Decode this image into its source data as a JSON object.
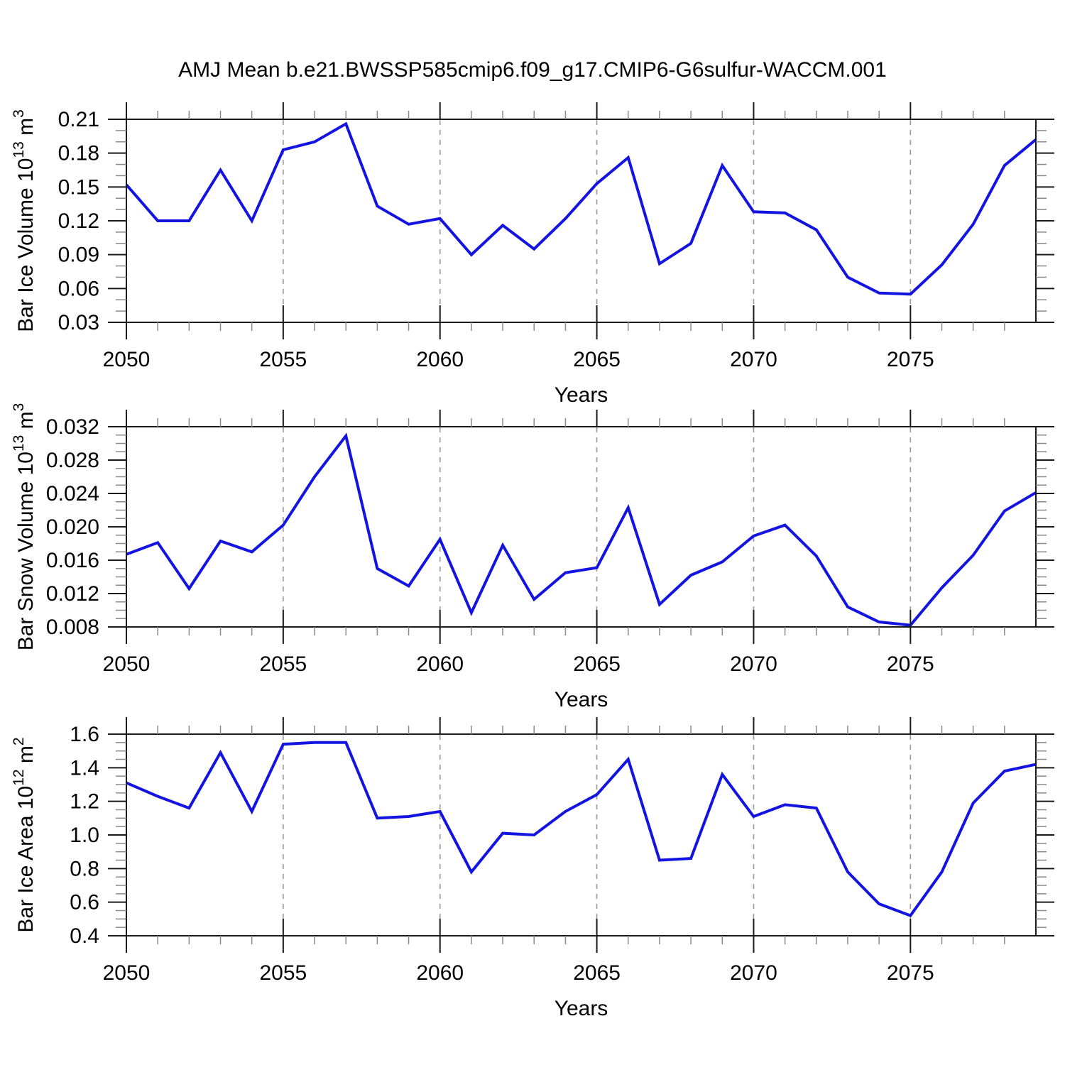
{
  "title": "AMJ Mean b.e21.BWSSP585cmip6.f09_g17.CMIP6-G6sulfur-WACCM.001",
  "colors": {
    "line": "#1414e0",
    "frame": "#1a1a1a",
    "major_tick": "#1a1a1a",
    "minor_tick": "#8a8a8a",
    "gridline": "#999999",
    "text": "#000000",
    "background": "#ffffff"
  },
  "x_axis": {
    "label": "Years",
    "range": [
      2050,
      2079
    ],
    "major_ticks": [
      2050,
      2055,
      2060,
      2065,
      2070,
      2075
    ],
    "minor_step": 1,
    "gridlines": [
      2055,
      2060,
      2065,
      2070,
      2075
    ]
  },
  "years": [
    2050,
    2051,
    2052,
    2053,
    2054,
    2055,
    2056,
    2057,
    2058,
    2059,
    2060,
    2061,
    2062,
    2063,
    2064,
    2065,
    2066,
    2067,
    2068,
    2069,
    2070,
    2071,
    2072,
    2073,
    2074,
    2075,
    2076,
    2077,
    2078,
    2079
  ],
  "chart_data": [
    {
      "type": "line",
      "name": "ice-volume",
      "xlabel": "Years",
      "ylabel": "Bar Ice Volume 10^13 m^3",
      "ylabel_parts": [
        {
          "t": "Bar Ice Volume 10",
          "sup": false
        },
        {
          "t": "13",
          "sup": true
        },
        {
          "t": " m",
          "sup": false
        },
        {
          "t": "3",
          "sup": true
        }
      ],
      "ylim": [
        0.03,
        0.21
      ],
      "yticks": [
        0.03,
        0.06,
        0.09,
        0.12,
        0.15,
        0.18,
        0.21
      ],
      "ytick_labels": [
        "0.03",
        "0.06",
        "0.09",
        "0.12",
        "0.15",
        "0.18",
        "0.21"
      ],
      "y_minor_step": 0.01,
      "grid": "vertical-dashed",
      "legend": "none",
      "values": [
        0.152,
        0.12,
        0.12,
        0.165,
        0.12,
        0.183,
        0.19,
        0.206,
        0.133,
        0.117,
        0.122,
        0.09,
        0.116,
        0.095,
        0.122,
        0.153,
        0.176,
        0.082,
        0.1,
        0.169,
        0.128,
        0.127,
        0.112,
        0.07,
        0.056,
        0.055,
        0.081,
        0.117,
        0.169,
        0.192
      ]
    },
    {
      "type": "line",
      "name": "snow-volume",
      "xlabel": "Years",
      "ylabel": "Bar Snow Volume 10^13 m^3",
      "ylabel_parts": [
        {
          "t": "Bar Snow Volume 10",
          "sup": false
        },
        {
          "t": "13",
          "sup": true
        },
        {
          "t": " m",
          "sup": false
        },
        {
          "t": "3",
          "sup": true
        }
      ],
      "ylim": [
        0.008,
        0.032
      ],
      "yticks": [
        0.008,
        0.012,
        0.016,
        0.02,
        0.024,
        0.028,
        0.032
      ],
      "ytick_labels": [
        "0.008",
        "0.012",
        "0.016",
        "0.020",
        "0.024",
        "0.028",
        "0.032"
      ],
      "y_minor_step": 0.001,
      "grid": "vertical-dashed",
      "legend": "none",
      "values": [
        0.0167,
        0.0181,
        0.0126,
        0.0183,
        0.017,
        0.0202,
        0.026,
        0.0309,
        0.015,
        0.0129,
        0.0185,
        0.0097,
        0.0178,
        0.0113,
        0.0145,
        0.0151,
        0.0223,
        0.0107,
        0.0142,
        0.0158,
        0.0189,
        0.0202,
        0.0165,
        0.0104,
        0.0086,
        0.0082,
        0.0127,
        0.0166,
        0.0219,
        0.0241
      ]
    },
    {
      "type": "line",
      "name": "ice-area",
      "xlabel": "Years",
      "ylabel": "Bar Ice Area 10^12 m^2",
      "ylabel_parts": [
        {
          "t": "Bar Ice Area 10",
          "sup": false
        },
        {
          "t": "12",
          "sup": true
        },
        {
          "t": " m",
          "sup": false
        },
        {
          "t": "2",
          "sup": true
        }
      ],
      "ylim": [
        0.4,
        1.6
      ],
      "yticks": [
        0.4,
        0.6,
        0.8,
        1.0,
        1.2,
        1.4,
        1.6
      ],
      "ytick_labels": [
        "0.4",
        "0.6",
        "0.8",
        "1.0",
        "1.2",
        "1.4",
        "1.6"
      ],
      "y_minor_step": 0.05,
      "grid": "vertical-dashed",
      "legend": "none",
      "values": [
        1.31,
        1.23,
        1.16,
        1.49,
        1.14,
        1.54,
        1.55,
        1.55,
        1.1,
        1.11,
        1.14,
        0.78,
        1.01,
        1.0,
        1.14,
        1.24,
        1.45,
        0.85,
        0.86,
        1.36,
        1.11,
        1.18,
        1.16,
        0.78,
        0.59,
        0.52,
        0.78,
        1.19,
        1.38,
        1.42
      ]
    }
  ]
}
